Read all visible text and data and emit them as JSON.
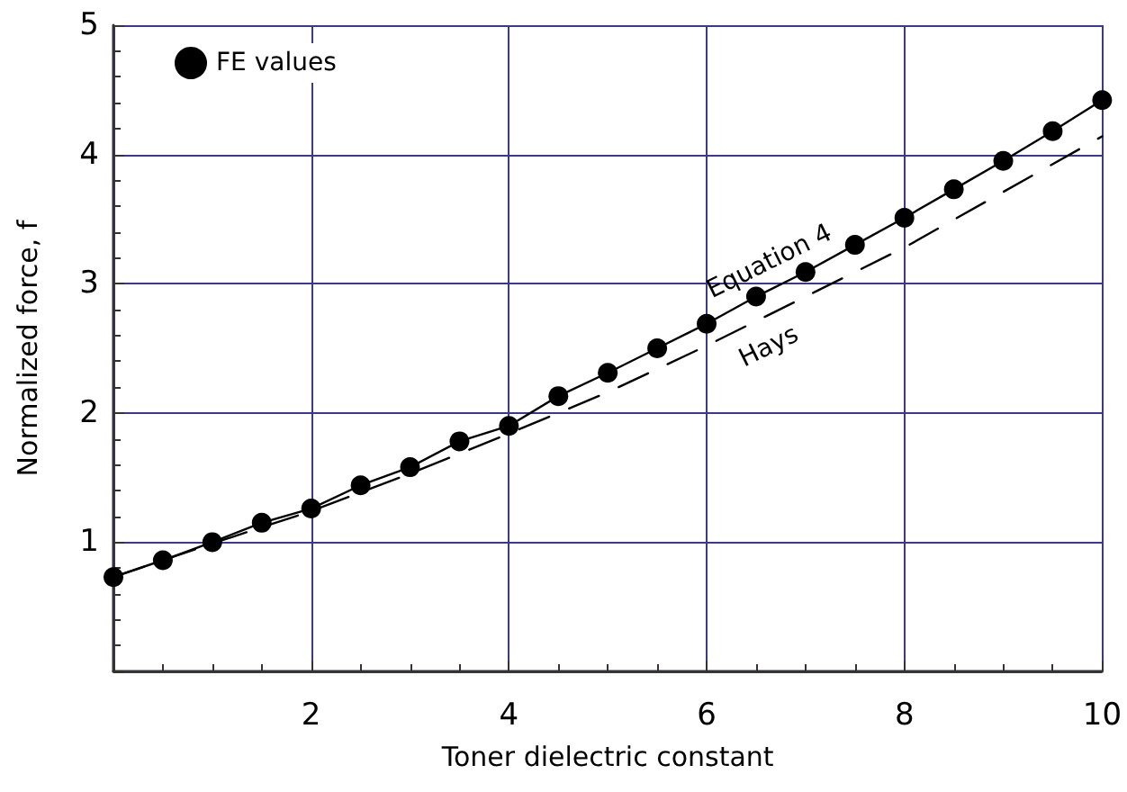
{
  "chart_data": {
    "type": "scatter",
    "xlabel": "Toner dielectric constant",
    "ylabel": "Normalized force, f",
    "xlim": [
      0,
      10
    ],
    "xticks": [
      {
        "value": 0,
        "label": null
      },
      2,
      4,
      6,
      8,
      10
    ],
    "ylim": [
      0,
      5
    ],
    "yticks": [
      {
        "value": 0,
        "label": null
      },
      1,
      2,
      3,
      4,
      5
    ],
    "grid": true,
    "legend": "top left",
    "series": [
      {
        "name": "FE values",
        "marker": "circle",
        "color": "#000000",
        "x": [
          0,
          0.5,
          1,
          1.5,
          2,
          2.5,
          3,
          3.5,
          4,
          4.5,
          5,
          5.5,
          6,
          6.5,
          7,
          7.5,
          8,
          8.5,
          9,
          9.5,
          10
        ],
        "values": [
          0.73,
          0.86,
          1.0,
          1.15,
          1.26,
          1.44,
          1.58,
          1.78,
          1.9,
          2.13,
          2.31,
          2.5,
          2.69,
          2.9,
          3.09,
          3.3,
          3.51,
          3.73,
          3.95,
          4.18,
          4.42
        ]
      },
      {
        "name": "Equation 4",
        "type": "line",
        "marker": "none",
        "color": "#000000",
        "line_style": "solid",
        "x": [
          0,
          0.5,
          1,
          1.5,
          2,
          2.5,
          3,
          3.5,
          4,
          4.5,
          5,
          5.5,
          6,
          6.5,
          7,
          7.5,
          8,
          8.5,
          9,
          9.5,
          10
        ],
        "values": [
          0.73,
          0.86,
          1.0,
          1.15,
          1.26,
          1.44,
          1.58,
          1.78,
          1.9,
          2.13,
          2.31,
          2.5,
          2.69,
          2.9,
          3.09,
          3.3,
          3.51,
          3.73,
          3.95,
          4.18,
          4.42
        ]
      },
      {
        "name": "Hays",
        "type": "line",
        "marker": "none",
        "color": "#000000",
        "line_style": "dashed",
        "x": [
          0,
          1,
          2,
          3,
          4,
          5,
          6,
          7,
          8,
          9,
          10
        ],
        "values": [
          0.73,
          0.99,
          1.24,
          1.53,
          1.84,
          2.16,
          2.52,
          2.9,
          3.28,
          3.71,
          4.14
        ]
      }
    ]
  }
}
